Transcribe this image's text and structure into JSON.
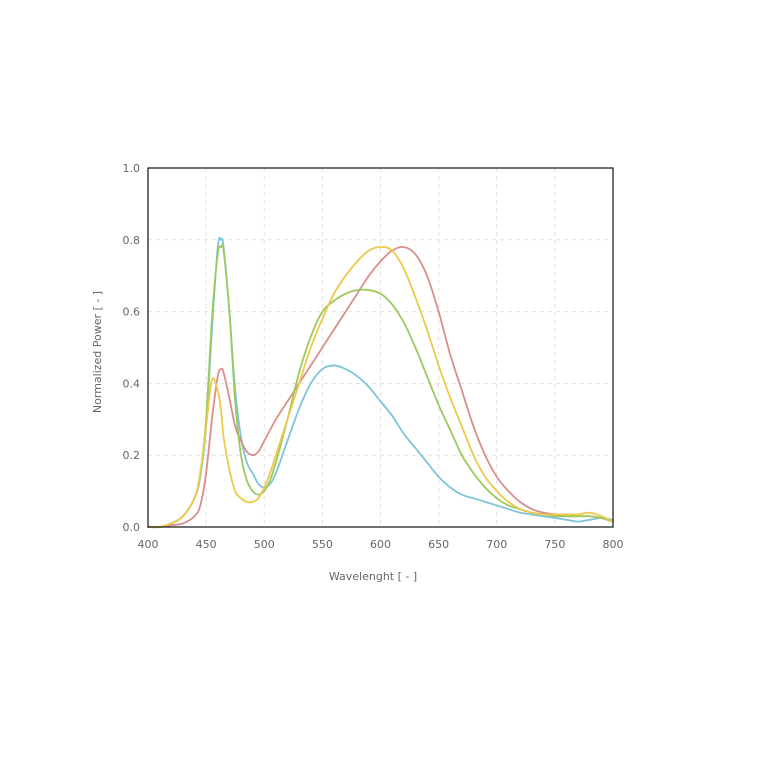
{
  "chart_data": {
    "type": "line",
    "title": "",
    "xlabel": "Wavelenght [ - ]",
    "ylabel": "Normalized Power [ - ]",
    "xlim": [
      400,
      800
    ],
    "ylim": [
      0,
      1.0
    ],
    "x_ticks": [
      "400",
      "450",
      "500",
      "550",
      "600",
      "650",
      "700",
      "750",
      "800"
    ],
    "y_ticks": [
      "0.0",
      "0.2",
      "0.4",
      "0.6",
      "0.8",
      "1.0"
    ],
    "grid": true,
    "x": [
      400,
      410,
      420,
      430,
      440,
      445,
      450,
      455,
      460,
      463,
      465,
      470,
      475,
      480,
      485,
      490,
      495,
      500,
      505,
      510,
      520,
      530,
      540,
      550,
      560,
      570,
      580,
      590,
      600,
      610,
      620,
      630,
      640,
      650,
      660,
      670,
      680,
      690,
      700,
      710,
      720,
      730,
      740,
      750,
      760,
      770,
      780,
      790,
      800
    ],
    "series": [
      {
        "color": "#7fc4d8",
        "values": [
          0.0,
          0.0,
          0.01,
          0.03,
          0.08,
          0.14,
          0.28,
          0.55,
          0.78,
          0.8,
          0.78,
          0.6,
          0.38,
          0.25,
          0.18,
          0.15,
          0.12,
          0.11,
          0.12,
          0.15,
          0.24,
          0.33,
          0.4,
          0.44,
          0.45,
          0.44,
          0.42,
          0.39,
          0.35,
          0.31,
          0.26,
          0.22,
          0.18,
          0.14,
          0.11,
          0.09,
          0.08,
          0.07,
          0.06,
          0.05,
          0.04,
          0.035,
          0.03,
          0.025,
          0.02,
          0.015,
          0.02,
          0.025,
          0.02
        ]
      },
      {
        "color": "#d98e8e",
        "values": [
          0.0,
          0.0,
          0.005,
          0.01,
          0.03,
          0.06,
          0.15,
          0.3,
          0.42,
          0.44,
          0.43,
          0.36,
          0.28,
          0.24,
          0.21,
          0.2,
          0.21,
          0.24,
          0.27,
          0.3,
          0.35,
          0.4,
          0.45,
          0.5,
          0.55,
          0.6,
          0.65,
          0.7,
          0.74,
          0.77,
          0.78,
          0.76,
          0.7,
          0.6,
          0.48,
          0.38,
          0.28,
          0.2,
          0.14,
          0.1,
          0.07,
          0.05,
          0.04,
          0.035,
          0.03,
          0.03,
          0.03,
          0.025,
          0.015
        ]
      },
      {
        "color": "#9cc95b",
        "values": [
          0.0,
          0.0,
          0.01,
          0.03,
          0.08,
          0.15,
          0.3,
          0.58,
          0.76,
          0.78,
          0.77,
          0.6,
          0.35,
          0.2,
          0.13,
          0.1,
          0.09,
          0.1,
          0.13,
          0.18,
          0.3,
          0.43,
          0.53,
          0.6,
          0.63,
          0.65,
          0.66,
          0.66,
          0.65,
          0.62,
          0.57,
          0.5,
          0.42,
          0.34,
          0.27,
          0.2,
          0.15,
          0.11,
          0.08,
          0.06,
          0.05,
          0.04,
          0.035,
          0.03,
          0.03,
          0.03,
          0.03,
          0.025,
          0.015
        ]
      },
      {
        "color": "#edc94a",
        "values": [
          0.0,
          0.0,
          0.01,
          0.03,
          0.08,
          0.15,
          0.28,
          0.41,
          0.38,
          0.32,
          0.25,
          0.16,
          0.1,
          0.08,
          0.07,
          0.07,
          0.08,
          0.11,
          0.15,
          0.2,
          0.3,
          0.4,
          0.5,
          0.58,
          0.65,
          0.7,
          0.74,
          0.77,
          0.78,
          0.77,
          0.72,
          0.64,
          0.55,
          0.45,
          0.36,
          0.28,
          0.2,
          0.14,
          0.1,
          0.07,
          0.05,
          0.04,
          0.035,
          0.035,
          0.035,
          0.035,
          0.04,
          0.03,
          0.015
        ]
      }
    ]
  }
}
